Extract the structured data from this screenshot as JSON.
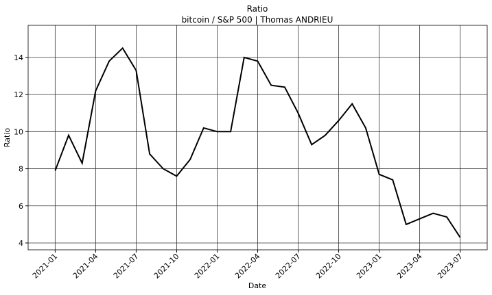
{
  "chart_data": {
    "type": "line",
    "title": "Ratio",
    "subtitle": "bitcoin / S&P 500 | Thomas ANDRIEU",
    "x_label": "Date",
    "y_label": "Ratio",
    "x": [
      "2021-01",
      "2021-02",
      "2021-03",
      "2021-04",
      "2021-05",
      "2021-06",
      "2021-07",
      "2021-08",
      "2021-09",
      "2021-10",
      "2021-11",
      "2021-12",
      "2022-01",
      "2022-02",
      "2022-03",
      "2022-04",
      "2022-05",
      "2022-06",
      "2022-07",
      "2022-08",
      "2022-09",
      "2022-10",
      "2022-11",
      "2022-12",
      "2023-01",
      "2023-02",
      "2023-03",
      "2023-04",
      "2023-05",
      "2023-06",
      "2023-07"
    ],
    "values": [
      7.9,
      9.8,
      8.3,
      12.2,
      13.8,
      14.5,
      13.3,
      8.8,
      8.0,
      7.6,
      8.5,
      10.2,
      10.0,
      10.0,
      14.0,
      13.8,
      12.5,
      12.4,
      11.0,
      9.3,
      9.8,
      10.6,
      11.5,
      10.2,
      7.7,
      7.4,
      5.0,
      5.3,
      5.6,
      5.4,
      4.3
    ],
    "color": "#000000",
    "xlim": [
      "2020-11",
      "2023-09"
    ],
    "xticks": [
      "2021-01",
      "2021-04",
      "2021-07",
      "2021-10",
      "2022-01",
      "2022-04",
      "2022-07",
      "2022-10",
      "2023-01",
      "2023-04",
      "2023-07"
    ],
    "ylim": [
      3.63,
      15.73
    ],
    "yticks": [
      4,
      6,
      8,
      10,
      12,
      14
    ],
    "grid": true
  }
}
